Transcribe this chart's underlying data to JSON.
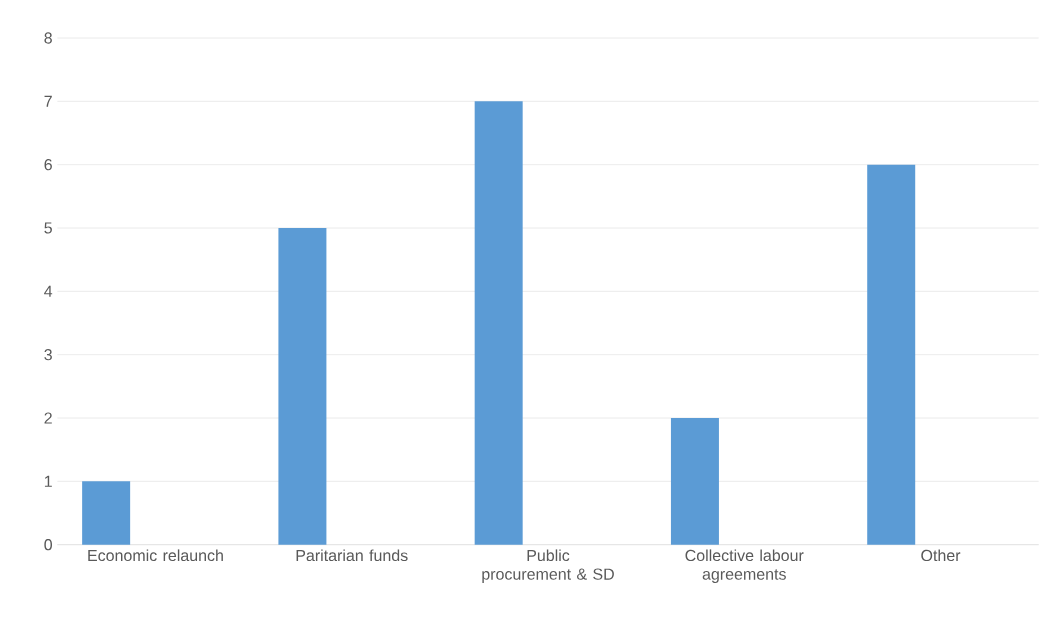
{
  "chart_data": {
    "type": "bar",
    "categories": [
      "Economic relaunch",
      "Paritarian funds",
      "Public procurement & SD",
      "Collective labour agreements",
      "Other"
    ],
    "values": [
      1,
      5,
      7,
      2,
      6
    ],
    "color": "#5b9bd5",
    "ylim": [
      0,
      8
    ],
    "yticks": [
      0,
      1,
      2,
      3,
      4,
      5,
      6,
      7,
      8
    ],
    "grid": "y"
  }
}
